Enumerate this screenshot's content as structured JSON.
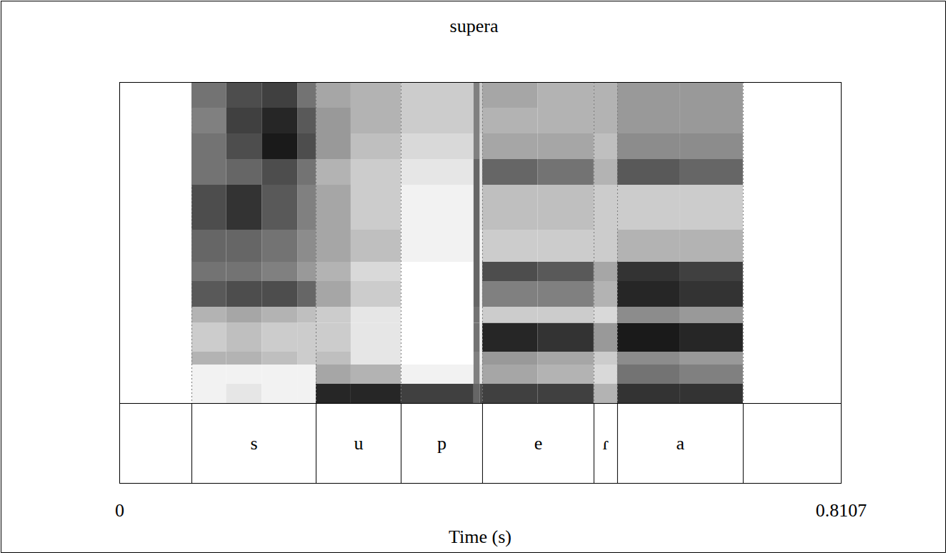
{
  "chart_data": {
    "type": "spectrogram",
    "title": "supera",
    "xlabel": "Time (s)",
    "xlim": [
      0,
      0.8107
    ],
    "xticks": [
      0,
      0.8107
    ],
    "ylim": [
      0,
      5000
    ],
    "tick_labels": "x",
    "segments": [
      "s",
      "u",
      "p",
      "e",
      "ɾ",
      "a"
    ],
    "boundaries": [
      0.0811,
      0.2207,
      0.3162,
      0.4077,
      0.5329,
      0.5594,
      0.7006
    ],
    "time_bins": [
      0.0811,
      0.12,
      0.16,
      0.2,
      0.2207,
      0.26,
      0.3162,
      0.398,
      0.405,
      0.4077,
      0.47,
      0.5329,
      0.5594,
      0.63,
      0.7006
    ],
    "frequency_bins": [
      0,
      300,
      600,
      800,
      1250,
      1500,
      1900,
      2200,
      2700,
      3400,
      3800,
      4200,
      4600,
      5000
    ],
    "intensity_lim": [
      0,
      1
    ],
    "intensity": [
      [
        0.05,
        0.05,
        0.3,
        0.2,
        0.3,
        0.65,
        0.55,
        0.6,
        0.7,
        0.55,
        0.55,
        0.5,
        0.55
      ],
      [
        0.1,
        0.05,
        0.3,
        0.25,
        0.35,
        0.7,
        0.55,
        0.6,
        0.8,
        0.6,
        0.7,
        0.75,
        0.7
      ],
      [
        0.05,
        0.05,
        0.25,
        0.2,
        0.3,
        0.7,
        0.5,
        0.55,
        0.65,
        0.7,
        0.9,
        0.85,
        0.75
      ],
      [
        0.05,
        0.05,
        0.2,
        0.2,
        0.25,
        0.6,
        0.4,
        0.45,
        0.5,
        0.55,
        0.7,
        0.65,
        0.55
      ],
      [
        0.85,
        0.35,
        0.25,
        0.2,
        0.2,
        0.35,
        0.3,
        0.35,
        0.35,
        0.3,
        0.4,
        0.4,
        0.35
      ],
      [
        0.85,
        0.3,
        0.1,
        0.1,
        0.1,
        0.2,
        0.15,
        0.25,
        0.2,
        0.2,
        0.25,
        0.3,
        0.3
      ],
      [
        0.75,
        0.05,
        0.0,
        0.0,
        0.0,
        0.0,
        0.0,
        0.05,
        0.05,
        0.1,
        0.15,
        0.2,
        0.2
      ],
      [
        0.6,
        0.5,
        0.5,
        0.55,
        0.55,
        0.6,
        0.6,
        0.6,
        0.6,
        0.6,
        0.5,
        0.5,
        0.5
      ],
      [
        0.7,
        0.1,
        0.05,
        0.05,
        0.05,
        0.05,
        0.05,
        0.05,
        0.1,
        0.1,
        0.15,
        0.2,
        0.2
      ],
      [
        0.75,
        0.35,
        0.4,
        0.85,
        0.2,
        0.5,
        0.7,
        0.2,
        0.25,
        0.6,
        0.35,
        0.3,
        0.35
      ],
      [
        0.75,
        0.3,
        0.35,
        0.8,
        0.2,
        0.5,
        0.65,
        0.2,
        0.25,
        0.55,
        0.35,
        0.3,
        0.3
      ],
      [
        0.3,
        0.15,
        0.2,
        0.4,
        0.15,
        0.3,
        0.35,
        0.2,
        0.2,
        0.3,
        0.25,
        0.3,
        0.3
      ],
      [
        0.8,
        0.55,
        0.45,
        0.9,
        0.45,
        0.85,
        0.8,
        0.3,
        0.2,
        0.65,
        0.45,
        0.4,
        0.4
      ],
      [
        0.8,
        0.5,
        0.4,
        0.85,
        0.4,
        0.8,
        0.75,
        0.3,
        0.2,
        0.6,
        0.45,
        0.4,
        0.4
      ]
    ]
  }
}
